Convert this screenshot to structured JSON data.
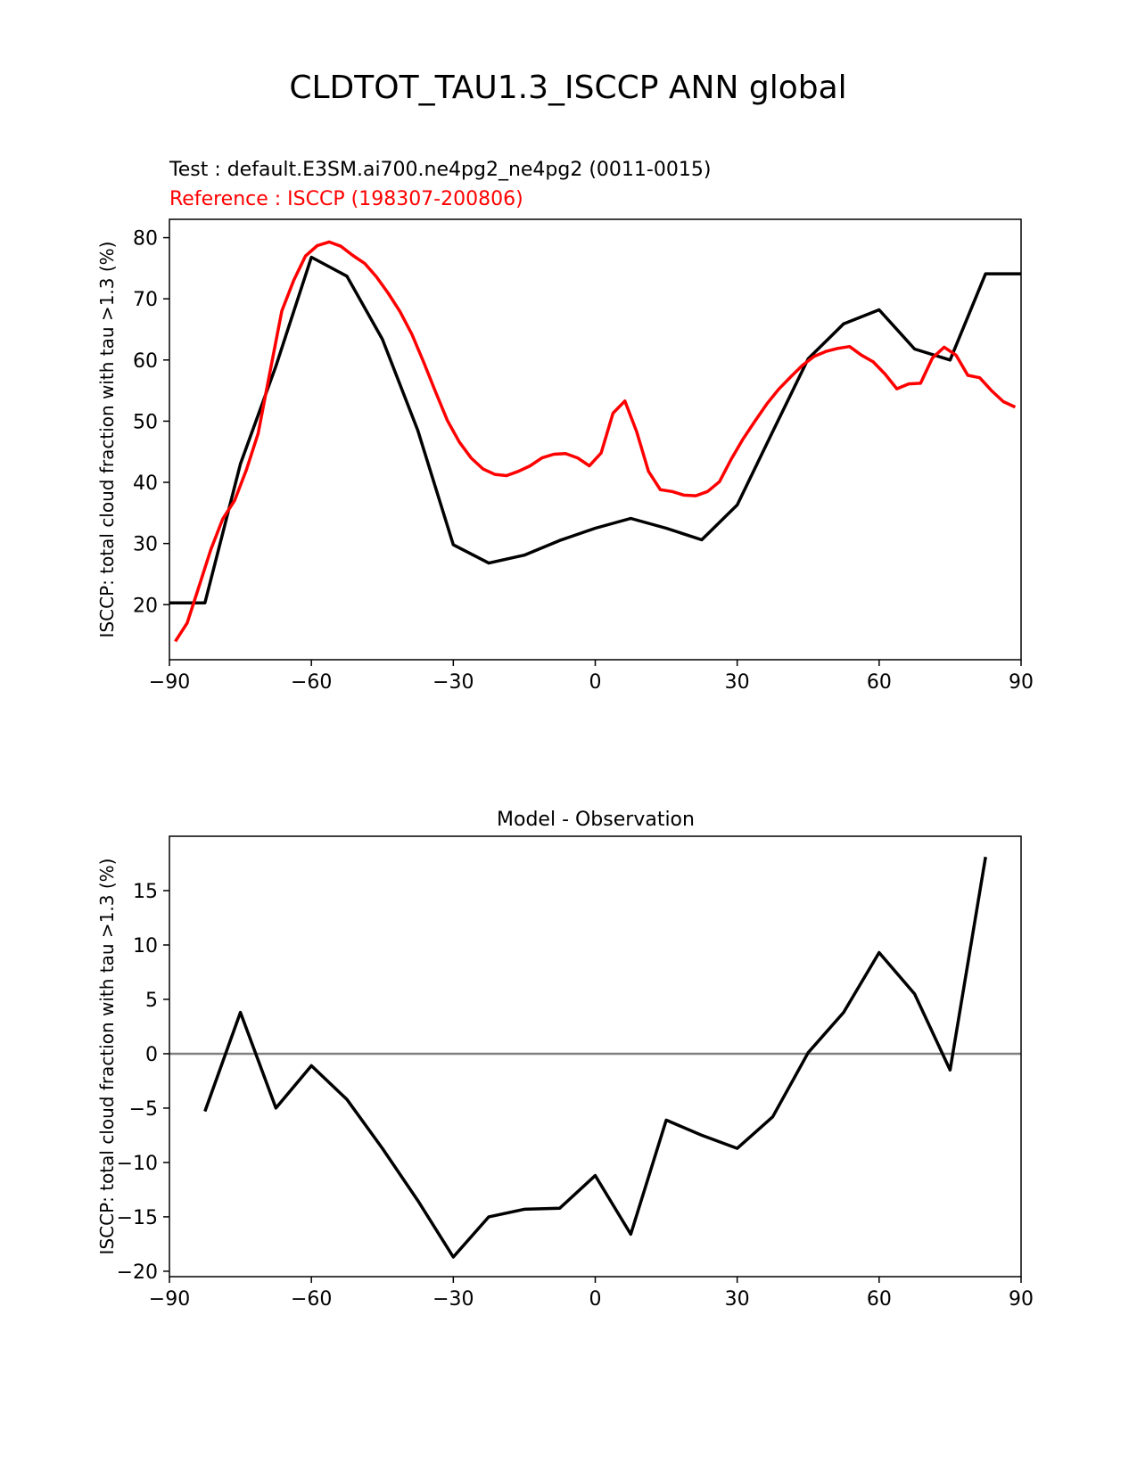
{
  "figure": {
    "suptitle": "CLDTOT_TAU1.3_ISCCP ANN global"
  },
  "colors": {
    "test": "#000000",
    "reference": "#ff0000",
    "zero_line": "#808080"
  },
  "chart_data": [
    {
      "type": "line",
      "title": "",
      "test_label": "Test : default.E3SM.ai700.ne4pg2_ne4pg2 (0011-0015)",
      "reference_label": "Reference : ISCCP (198307-200806)",
      "xlabel": "",
      "ylabel": "ISCCP: total cloud fraction with tau >1.3 (%)",
      "xlim": [
        -90,
        90
      ],
      "ylim": [
        11,
        83
      ],
      "xticks": [
        -90,
        -60,
        -30,
        0,
        30,
        60,
        90
      ],
      "xtick_labels": [
        "−90",
        "−60",
        "−30",
        "0",
        "30",
        "60",
        "90"
      ],
      "yticks": [
        20,
        30,
        40,
        50,
        60,
        70,
        80
      ],
      "ytick_labels": [
        "20",
        "30",
        "40",
        "50",
        "60",
        "70",
        "80"
      ],
      "grid": false,
      "series": [
        {
          "name": "Test",
          "color": "#000000",
          "x": [
            -90,
            -82.5,
            -75,
            -67.5,
            -60,
            -52.5,
            -45,
            -37.5,
            -30,
            -22.5,
            -15,
            -7.5,
            0,
            7.5,
            15,
            22.5,
            30,
            37.5,
            45,
            52.5,
            60,
            67.5,
            75,
            82.5,
            90
          ],
          "y": [
            20.3,
            20.3,
            43,
            59,
            76.8,
            73.7,
            63.4,
            48.5,
            29.8,
            26.8,
            28.1,
            30.5,
            32.5,
            34.1,
            32.5,
            30.6,
            36.3,
            48.3,
            60.2,
            65.9,
            68.2,
            61.8,
            60,
            74.1,
            74.1
          ]
        },
        {
          "name": "Reference",
          "color": "#ff0000",
          "x": [
            -88.75,
            -86.25,
            -83.75,
            -81.25,
            -78.75,
            -76.25,
            -73.75,
            -71.25,
            -68.75,
            -66.25,
            -63.75,
            -61.25,
            -58.75,
            -56.25,
            -53.75,
            -51.25,
            -48.75,
            -46.25,
            -43.75,
            -41.25,
            -38.75,
            -36.25,
            -33.75,
            -31.25,
            -28.75,
            -26.25,
            -23.75,
            -21.25,
            -18.75,
            -16.25,
            -13.75,
            -11.25,
            -8.75,
            -6.25,
            -3.75,
            -1.25,
            1.25,
            3.75,
            6.25,
            8.75,
            11.25,
            13.75,
            16.25,
            18.75,
            21.25,
            23.75,
            26.25,
            28.75,
            31.25,
            33.75,
            36.25,
            38.75,
            41.25,
            43.75,
            46.25,
            48.75,
            51.25,
            53.75,
            56.25,
            58.75,
            61.25,
            63.75,
            66.25,
            68.75,
            71.25,
            73.75,
            76.25,
            78.75,
            81.25,
            83.75,
            86.25,
            88.75
          ],
          "y": [
            14,
            17,
            23,
            29,
            34,
            37,
            42,
            48,
            58,
            68,
            73,
            77,
            78.7,
            79.3,
            78.6,
            77.1,
            75.8,
            73.6,
            70.9,
            67.9,
            64.2,
            59.6,
            54.8,
            50.1,
            46.6,
            44,
            42.2,
            41.3,
            41.1,
            41.8,
            42.7,
            44,
            44.6,
            44.7,
            44,
            42.7,
            44.8,
            51.3,
            53.3,
            48.3,
            41.8,
            38.8,
            38.5,
            37.9,
            37.8,
            38.5,
            40.1,
            43.8,
            47.1,
            50,
            52.8,
            55.2,
            57.2,
            59.1,
            60.6,
            61.4,
            61.9,
            62.2,
            60.8,
            59.7,
            57.7,
            55.3,
            56.1,
            56.2,
            60.3,
            62.1,
            60.8,
            57.5,
            57.1,
            55,
            53.2,
            52.3
          ]
        }
      ]
    },
    {
      "type": "line",
      "title": "Model - Observation",
      "xlabel": "",
      "ylabel": "ISCCP: total cloud fraction with tau >1.3 (%)",
      "xlim": [
        -90,
        90
      ],
      "ylim": [
        -20.5,
        20
      ],
      "xticks": [
        -90,
        -60,
        -30,
        0,
        30,
        60,
        90
      ],
      "xtick_labels": [
        "−90",
        "−60",
        "−30",
        "0",
        "30",
        "60",
        "90"
      ],
      "yticks": [
        -20,
        -15,
        -10,
        -5,
        0,
        5,
        10,
        15
      ],
      "ytick_labels": [
        "−20",
        "−15",
        "−10",
        "−5",
        "0",
        "5",
        "10",
        "15"
      ],
      "grid": false,
      "zero_line": 0,
      "series": [
        {
          "name": "",
          "color": "#000000",
          "x": [
            -82.5,
            -75,
            -67.5,
            -60,
            -52.5,
            -45,
            -37.5,
            -30,
            -22.5,
            -15,
            -7.5,
            0,
            7.5,
            15,
            22.5,
            30,
            37.5,
            45,
            52.5,
            60,
            67.5,
            75,
            82.5
          ],
          "y": [
            -5.3,
            3.8,
            -5,
            -1.1,
            -4.2,
            -8.7,
            -13.5,
            -18.7,
            -15,
            -14.3,
            -14.2,
            -11.2,
            -16.6,
            -6.1,
            -7.5,
            -8.7,
            -5.8,
            0.1,
            3.8,
            9.3,
            5.5,
            -1.5,
            18.1
          ]
        }
      ]
    }
  ]
}
